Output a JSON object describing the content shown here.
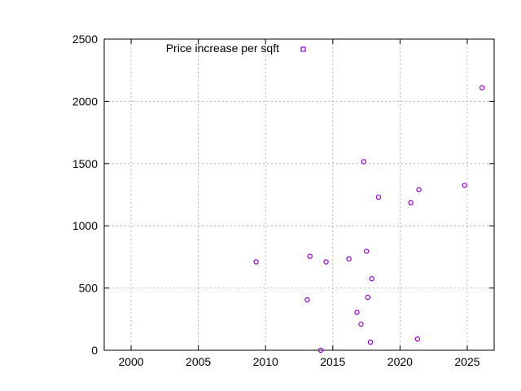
{
  "chart_data": {
    "type": "scatter",
    "title": "",
    "xlabel": "",
    "ylabel": "",
    "xlim": [
      1998,
      2027
    ],
    "ylim": [
      0,
      2500
    ],
    "xticks": [
      2000,
      2005,
      2010,
      2015,
      2020,
      2025
    ],
    "yticks": [
      0,
      500,
      1000,
      1500,
      2000,
      2500
    ],
    "grid": true,
    "legend": {
      "position": "top-left"
    },
    "series": [
      {
        "name": "Price increase per sqft",
        "color": "#9400d3",
        "marker": "circle",
        "points": [
          [
            2009.3,
            710
          ],
          [
            2013.1,
            405
          ],
          [
            2013.3,
            755
          ],
          [
            2014.1,
            0
          ],
          [
            2014.5,
            710
          ],
          [
            2016.2,
            735
          ],
          [
            2016.8,
            305
          ],
          [
            2017.1,
            210
          ],
          [
            2017.3,
            1515
          ],
          [
            2017.5,
            795
          ],
          [
            2017.6,
            425
          ],
          [
            2017.8,
            65
          ],
          [
            2017.9,
            575
          ],
          [
            2018.4,
            1230
          ],
          [
            2020.8,
            1185
          ],
          [
            2021.3,
            90
          ],
          [
            2021.4,
            1290
          ],
          [
            2024.8,
            1325
          ],
          [
            2026.1,
            2110
          ]
        ]
      }
    ]
  }
}
